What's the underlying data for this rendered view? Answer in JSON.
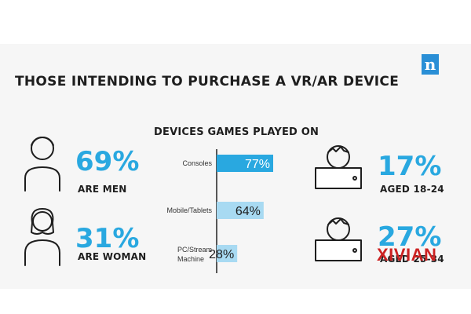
{
  "title": "THOSE INTENDING TO PURCHASE A VR/AR DEVICE",
  "brand": {
    "logo_letter": "n",
    "color": "#2a8fd6"
  },
  "accent_color": "#29a8e0",
  "gender": {
    "men": {
      "value": "69%",
      "label": "ARE MEN",
      "icon": "man-icon"
    },
    "women": {
      "value": "31%",
      "label": "ARE WOMAN",
      "icon": "woman-icon"
    }
  },
  "age": {
    "group1": {
      "value": "17%",
      "label": "AGED 18-24",
      "icon": "person-with-tablet-icon"
    },
    "group2": {
      "value": "27%",
      "label": "AGED 25-34",
      "icon": "person-with-tablet-icon"
    }
  },
  "watermark": "XIVIAN",
  "chart_data": {
    "type": "bar",
    "orientation": "horizontal",
    "title": "DEVICES GAMES PLAYED ON",
    "categories": [
      "Consoles",
      "Mobile/Tablets",
      "PC/Stream Machine"
    ],
    "values": [
      77,
      64,
      28
    ],
    "value_labels": [
      "77%",
      "64%",
      "28%"
    ],
    "colors": [
      "#29a8e0",
      "#a8daf2",
      "#a8daf2"
    ],
    "xlim": [
      0,
      100
    ],
    "grid": false
  }
}
